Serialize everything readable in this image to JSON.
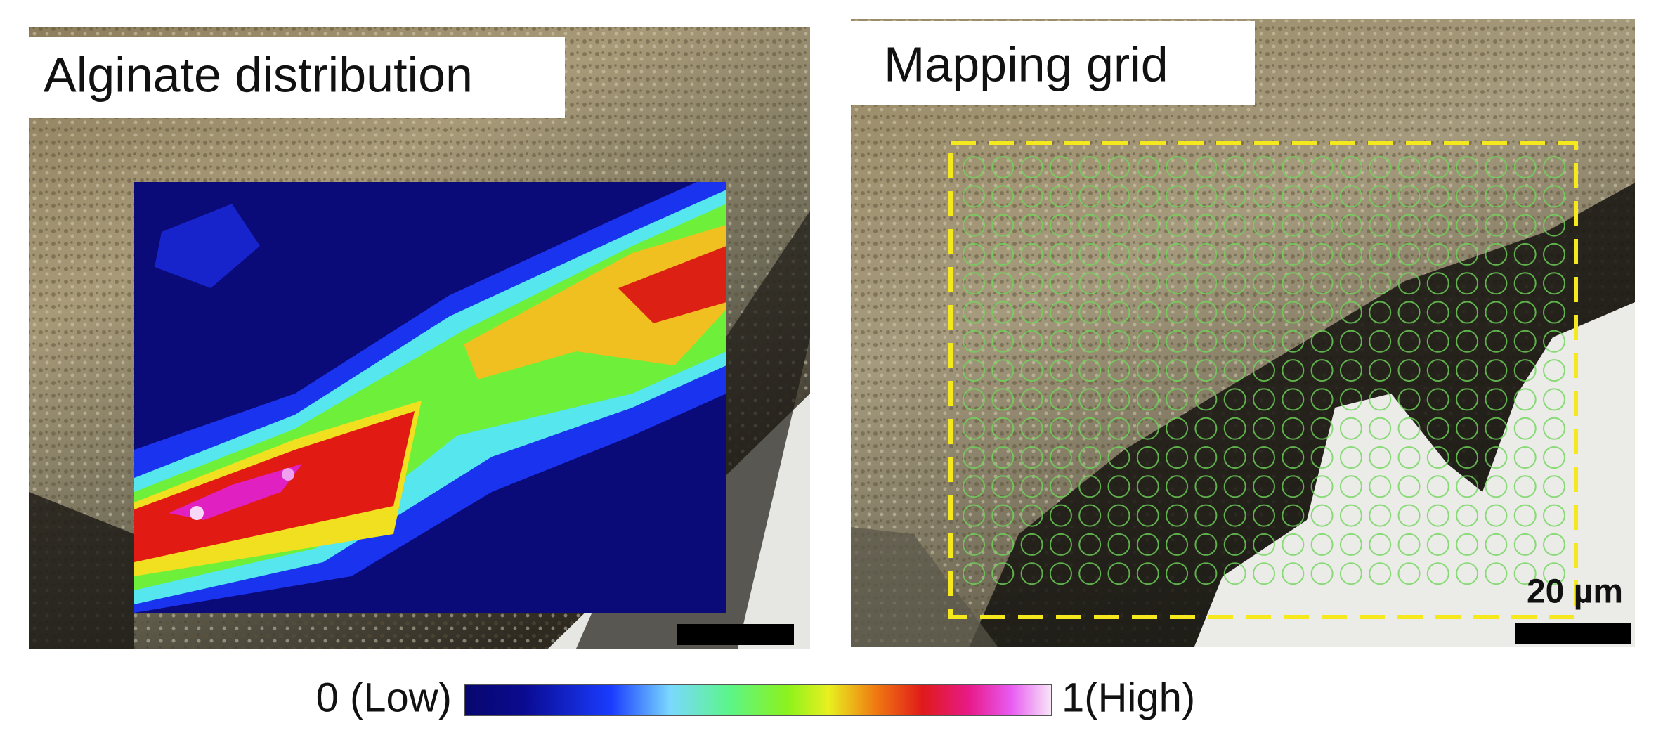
{
  "panels": [
    {
      "label": "Alginate distribution"
    },
    {
      "label": "Mapping grid",
      "scale_bar_label": "20 µm"
    }
  ],
  "colorbar": {
    "low_label": "0 (Low)",
    "high_label": "1(High)"
  }
}
